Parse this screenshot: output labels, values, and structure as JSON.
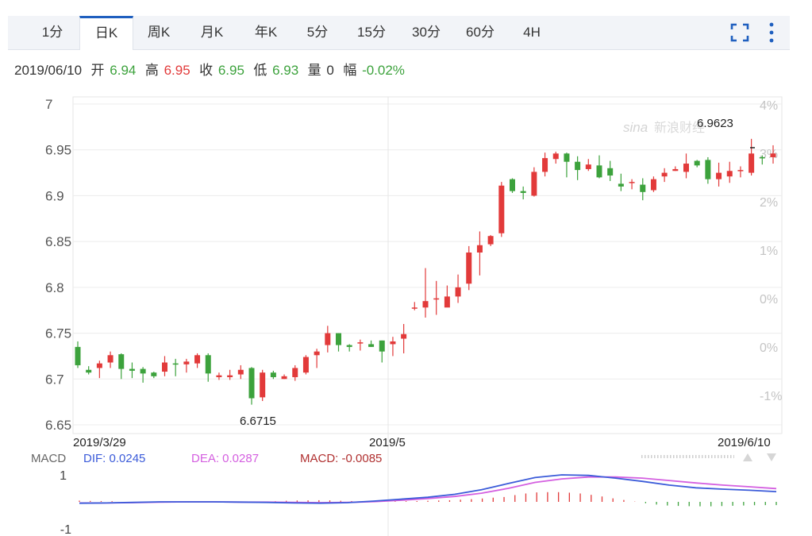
{
  "tabs": [
    {
      "label": "1分",
      "active": false
    },
    {
      "label": "日K",
      "active": true
    },
    {
      "label": "周K",
      "active": false
    },
    {
      "label": "月K",
      "active": false
    },
    {
      "label": "年K",
      "active": false
    },
    {
      "label": "5分",
      "active": false
    },
    {
      "label": "15分",
      "active": false
    },
    {
      "label": "30分",
      "active": false
    },
    {
      "label": "60分",
      "active": false
    },
    {
      "label": "4H",
      "active": false
    }
  ],
  "info": {
    "date": "2019/06/10",
    "open_label": "开",
    "open": "6.94",
    "high_label": "高",
    "high": "6.95",
    "close_label": "收",
    "close": "6.95",
    "low_label": "低",
    "low": "6.93",
    "vol_label": "量",
    "vol": "0",
    "chg_label": "幅",
    "chg": "-0.02%"
  },
  "watermark": "新浪财经",
  "colors": {
    "up": "#e23a3a",
    "down": "#3ca23c",
    "dif": "#3b5bd9",
    "dea": "#d45fe0",
    "macd_label": "#b03030",
    "accent": "#1f5fbf"
  },
  "macd_legend": {
    "title": "MACD",
    "dif": "DIF: 0.0245",
    "dea": "DEA: 0.0287",
    "macd": "MACD: -0.0085"
  },
  "chart_data": [
    {
      "type": "candlestick",
      "ylim": [
        6.65,
        7.0
      ],
      "yticks": [
        "7",
        "6.95",
        "6.9",
        "6.85",
        "6.8",
        "6.75",
        "6.7",
        "6.65"
      ],
      "right_ticks": [
        "4%",
        "3%",
        "2%",
        "1%",
        "0%",
        "0%",
        "-1%"
      ],
      "x_labels": [
        "2019/3/29",
        "2019/5",
        "2019/6/10"
      ],
      "annotations": {
        "max": "6.9623",
        "min": "6.6715"
      },
      "candles": [
        [
          6.735,
          6.715,
          6.741,
          6.712
        ],
        [
          6.71,
          6.707,
          6.714,
          6.705
        ],
        [
          6.712,
          6.717,
          6.72,
          6.701
        ],
        [
          6.718,
          6.726,
          6.73,
          6.712
        ],
        [
          6.727,
          6.711,
          6.728,
          6.7
        ],
        [
          6.711,
          6.709,
          6.718,
          6.701
        ],
        [
          6.711,
          6.706,
          6.713,
          6.696
        ],
        [
          6.707,
          6.703,
          6.708,
          6.701
        ],
        [
          6.708,
          6.718,
          6.725,
          6.703
        ],
        [
          6.717,
          6.716,
          6.722,
          6.703
        ],
        [
          6.716,
          6.719,
          6.722,
          6.707
        ],
        [
          6.717,
          6.726,
          6.728,
          6.712
        ],
        [
          6.726,
          6.706,
          6.728,
          6.697
        ],
        [
          6.702,
          6.704,
          6.707,
          6.699
        ],
        [
          6.702,
          6.704,
          6.71,
          6.699
        ],
        [
          6.705,
          6.71,
          6.715,
          6.7
        ],
        [
          6.712,
          6.679,
          6.713,
          6.672
        ],
        [
          6.68,
          6.707,
          6.71,
          6.676
        ],
        [
          6.707,
          6.702,
          6.709,
          6.7
        ],
        [
          6.7,
          6.703,
          6.705,
          6.7
        ],
        [
          6.702,
          6.712,
          6.715,
          6.698
        ],
        [
          6.707,
          6.724,
          6.726,
          6.705
        ],
        [
          6.726,
          6.73,
          6.733,
          6.712
        ],
        [
          6.737,
          6.75,
          6.758,
          6.729
        ],
        [
          6.75,
          6.737,
          6.75,
          6.73
        ],
        [
          6.737,
          6.735,
          6.738,
          6.73
        ],
        [
          6.74,
          6.74,
          6.743,
          6.731
        ],
        [
          6.738,
          6.735,
          6.742,
          6.735
        ],
        [
          6.742,
          6.73,
          6.742,
          6.718
        ],
        [
          6.738,
          6.741,
          6.746,
          6.725
        ],
        [
          6.744,
          6.749,
          6.76,
          6.728
        ],
        [
          6.778,
          6.778,
          6.784,
          6.775
        ],
        [
          6.778,
          6.785,
          6.821,
          6.767
        ],
        [
          6.788,
          6.788,
          6.807,
          6.77
        ],
        [
          6.778,
          6.79,
          6.802,
          6.78
        ],
        [
          6.79,
          6.8,
          6.814,
          6.783
        ],
        [
          6.804,
          6.838,
          6.845,
          6.797
        ],
        [
          6.838,
          6.846,
          6.861,
          6.813
        ],
        [
          6.847,
          6.856,
          6.857,
          6.845
        ],
        [
          6.859,
          6.911,
          6.915,
          6.855
        ],
        [
          6.918,
          6.905,
          6.919,
          6.903
        ],
        [
          6.905,
          6.903,
          6.91,
          6.896
        ],
        [
          6.9,
          6.926,
          6.931,
          6.899
        ],
        [
          6.926,
          6.941,
          6.947,
          6.921
        ],
        [
          6.94,
          6.946,
          6.948,
          6.935
        ],
        [
          6.946,
          6.937,
          6.947,
          6.92
        ],
        [
          6.937,
          6.928,
          6.943,
          6.917
        ],
        [
          6.929,
          6.934,
          6.94,
          6.927
        ],
        [
          6.933,
          6.92,
          6.944,
          6.919
        ],
        [
          6.93,
          6.922,
          6.938,
          6.916
        ],
        [
          6.913,
          6.91,
          6.924,
          6.905
        ],
        [
          6.915,
          6.915,
          6.918,
          6.907
        ],
        [
          6.912,
          6.904,
          6.919,
          6.895
        ],
        [
          6.906,
          6.918,
          6.921,
          6.904
        ],
        [
          6.921,
          6.925,
          6.93,
          6.915
        ],
        [
          6.927,
          6.929,
          6.932,
          6.927
        ],
        [
          6.926,
          6.935,
          6.946,
          6.919
        ],
        [
          6.938,
          6.933,
          6.939,
          6.931
        ],
        [
          6.939,
          6.918,
          6.942,
          6.913
        ],
        [
          6.918,
          6.925,
          6.936,
          6.91
        ],
        [
          6.921,
          6.927,
          6.937,
          6.914
        ],
        [
          6.928,
          6.928,
          6.932,
          6.92
        ],
        [
          6.925,
          6.946,
          6.962,
          6.922
        ],
        [
          6.942,
          6.941,
          6.944,
          6.934
        ],
        [
          6.942,
          6.946,
          6.955,
          6.935
        ]
      ]
    },
    {
      "type": "macd",
      "ylim": [
        -1,
        1
      ],
      "yticks": [
        "1",
        "-1"
      ],
      "dif": [
        -0.05,
        -0.04,
        -0.02,
        0.0,
        0.0,
        0.0,
        -0.01,
        -0.02,
        -0.04,
        -0.05,
        -0.03,
        0.03,
        0.1,
        0.17,
        0.28,
        0.45,
        0.68,
        0.9,
        1.0,
        0.98,
        0.88,
        0.76,
        0.62,
        0.52,
        0.47,
        0.43,
        0.38
      ],
      "dea": [
        -0.04,
        -0.04,
        -0.03,
        -0.01,
        0.0,
        0.0,
        -0.01,
        -0.01,
        -0.02,
        -0.03,
        -0.02,
        0.01,
        0.06,
        0.12,
        0.2,
        0.32,
        0.5,
        0.72,
        0.85,
        0.92,
        0.92,
        0.88,
        0.79,
        0.7,
        0.62,
        0.56,
        0.49
      ],
      "hist": [
        0.09,
        0.07,
        0.06,
        0.05,
        0.0,
        -0.01,
        -0.03,
        -0.04,
        -0.05,
        -0.04,
        -0.04,
        -0.04,
        -0.04,
        -0.04,
        -0.03,
        -0.02,
        0.01,
        0.03,
        0.05,
        0.08,
        0.1,
        0.11,
        0.12,
        0.11,
        0.08,
        0.06,
        0.06,
        0.05,
        0.04,
        0.04,
        0.05,
        0.06,
        0.08,
        0.1,
        0.12,
        0.16,
        0.2,
        0.25,
        0.31,
        0.36,
        0.5,
        0.62,
        0.7,
        0.72,
        0.72,
        0.68,
        0.62,
        0.52,
        0.4,
        0.26,
        0.14,
        0.02,
        -0.1,
        -0.2,
        -0.27,
        -0.3,
        -0.32,
        -0.33,
        -0.33,
        -0.31,
        -0.29,
        -0.27,
        -0.25,
        -0.24,
        -0.24
      ]
    }
  ]
}
